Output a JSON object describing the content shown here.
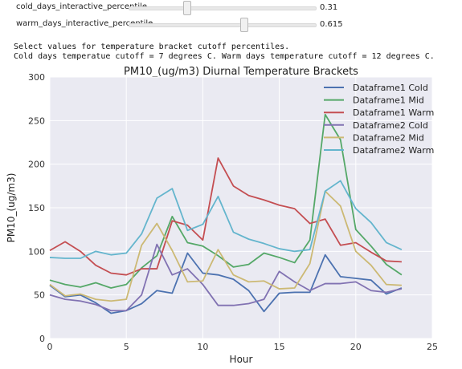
{
  "widgets": {
    "cold": {
      "label": "cold_days_interactive_percentile",
      "value": "0.31",
      "fraction": 0.31
    },
    "warm": {
      "label": "warm_days_interactive_percentile",
      "value": "0.615",
      "fraction": 0.615
    }
  },
  "output": {
    "line1": "Select values for temperature bracket cutoff percentiles.",
    "line2": "Cold days temperatue cutoff = 7 degrees C. Warm days temperature cutoff = 12 degrees C."
  },
  "chart_data": {
    "type": "line",
    "title": "PM10_(ug/m3) Diurnal Temperature Brackets",
    "xlabel": "Hour",
    "ylabel": "PM10_(ug/m3)",
    "xlim": [
      0,
      25
    ],
    "ylim": [
      0,
      300
    ],
    "xticks": [
      0,
      5,
      10,
      15,
      20,
      25
    ],
    "yticks": [
      0,
      50,
      100,
      150,
      200,
      250,
      300
    ],
    "grid": true,
    "legend": "top-right",
    "x": [
      0,
      1,
      2,
      3,
      4,
      5,
      6,
      7,
      8,
      9,
      10,
      11,
      12,
      13,
      14,
      15,
      16,
      17,
      18,
      19,
      20,
      21,
      22,
      23
    ],
    "series": [
      {
        "name": "Dataframe1 Cold",
        "color": "#4c72b0",
        "values": [
          61,
          48,
          50,
          41,
          29,
          32,
          40,
          55,
          52,
          98,
          75,
          73,
          68,
          55,
          31,
          52,
          53,
          53,
          96,
          71,
          69,
          67,
          51,
          58
        ]
      },
      {
        "name": "Dataframe1 Mid",
        "color": "#55a868",
        "values": [
          67,
          62,
          59,
          64,
          58,
          62,
          81,
          95,
          140,
          110,
          106,
          95,
          82,
          85,
          98,
          93,
          87,
          113,
          257,
          228,
          125,
          106,
          85,
          73
        ]
      },
      {
        "name": "Dataframe1 Warm",
        "color": "#c44e52",
        "values": [
          101,
          111,
          100,
          84,
          75,
          73,
          80,
          80,
          135,
          130,
          113,
          207,
          175,
          164,
          159,
          153,
          149,
          132,
          137,
          107,
          110,
          99,
          89,
          88
        ]
      },
      {
        "name": "Dataframe2 Cold",
        "color": "#8172b2",
        "values": [
          50,
          45,
          43,
          39,
          32,
          32,
          50,
          108,
          73,
          80,
          62,
          38,
          38,
          40,
          45,
          77,
          65,
          55,
          63,
          63,
          65,
          55,
          53,
          57
        ]
      },
      {
        "name": "Dataframe2 Mid",
        "color": "#ccb974",
        "values": [
          62,
          49,
          51,
          45,
          43,
          45,
          107,
          132,
          101,
          65,
          66,
          102,
          73,
          65,
          66,
          57,
          58,
          86,
          169,
          152,
          100,
          84,
          62,
          61
        ]
      },
      {
        "name": "Dataframe2 Warm",
        "color": "#64b5cd",
        "values": [
          93,
          92,
          92,
          100,
          96,
          98,
          120,
          161,
          172,
          124,
          131,
          163,
          122,
          114,
          109,
          103,
          100,
          102,
          169,
          181,
          149,
          133,
          110,
          102
        ]
      }
    ]
  }
}
